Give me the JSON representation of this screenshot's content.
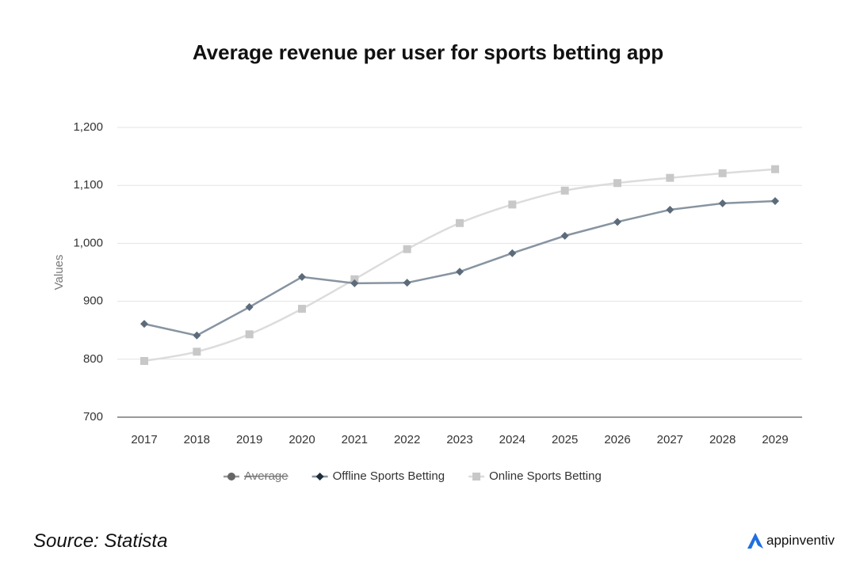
{
  "chart_data": {
    "type": "line",
    "title": "Average revenue per user for sports betting app",
    "y_label": "Values",
    "categories": [
      "2017",
      "2018",
      "2019",
      "2020",
      "2021",
      "2022",
      "2023",
      "2024",
      "2025",
      "2026",
      "2027",
      "2028",
      "2029"
    ],
    "series": [
      {
        "name": "Offline Sports Betting",
        "color": "#1e2d3b",
        "line_color": "#8794a1",
        "marker": "diamond",
        "smooth": false,
        "values": [
          861,
          841,
          890,
          942,
          931,
          932,
          951,
          983,
          1013,
          1037,
          1058,
          1069,
          1073
        ]
      },
      {
        "name": "Online Sports Betting",
        "color": "#c8c8c8",
        "line_color": "#dcdcdc",
        "marker": "square",
        "smooth": true,
        "values": [
          797,
          813,
          843,
          887,
          938,
          990,
          1035,
          1067,
          1091,
          1104,
          1113,
          1121,
          1128
        ]
      }
    ],
    "legend_hidden": [
      {
        "name": "Average",
        "color": "#666666",
        "marker": "circle"
      }
    ],
    "ylim": [
      700,
      1200
    ],
    "yticks": [
      700,
      800,
      900,
      {
        "value": 1000,
        "label": "1,000"
      },
      {
        "value": 1100,
        "label": "1,100"
      },
      {
        "value": 1200,
        "label": "1,200"
      }
    ],
    "grid": true,
    "legend": "bottom"
  },
  "footer": {
    "source": "Source: Statista",
    "brand": "appinventiv"
  }
}
